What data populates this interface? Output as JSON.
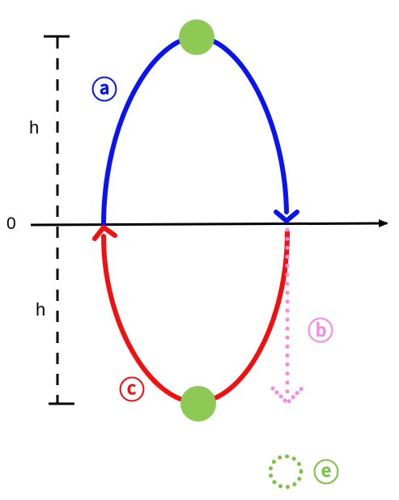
{
  "axis": {
    "zero_label": "0"
  },
  "dimensions": {
    "upper_label": "h",
    "lower_label": "h"
  },
  "paths": {
    "a": {
      "label": "ⓐ",
      "color": "#0a14f0"
    },
    "b": {
      "label": "ⓑ",
      "color": "#f58ae6"
    },
    "c": {
      "label": "ⓒ",
      "color": "#f01010"
    },
    "e": {
      "label": "ⓔ",
      "color": "#7cc243"
    }
  },
  "ball_color": "#8dc954"
}
